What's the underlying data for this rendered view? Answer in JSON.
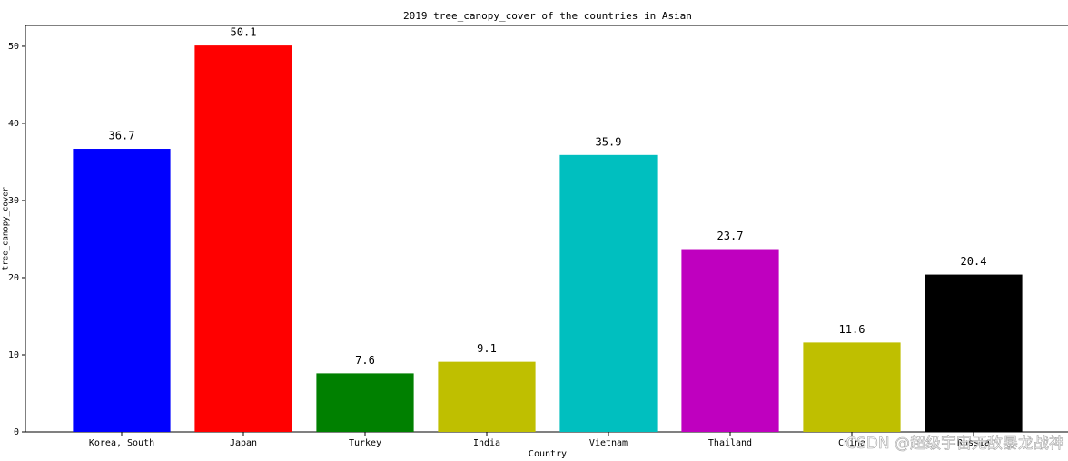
{
  "chart_data": {
    "type": "bar",
    "title": "2019 tree_canopy_cover of the countries in Asian",
    "x_label": "Country",
    "y_label": "tree_canopy_cover",
    "categories": [
      "Korea, South",
      "Japan",
      "Turkey",
      "India",
      "Vietnam",
      "Thailand",
      "China",
      "Russia"
    ],
    "values": [
      36.7,
      50.1,
      7.6,
      9.1,
      35.9,
      23.7,
      11.6,
      20.4
    ],
    "colors": [
      "#0000ff",
      "#ff0000",
      "#008000",
      "#bfbf00",
      "#00bfbf",
      "#bf00bf",
      "#bfbf00",
      "#000000"
    ],
    "ylim": [
      0,
      52.7
    ],
    "yticks": [
      0,
      10,
      20,
      30,
      40,
      50
    ],
    "grid": false,
    "watermark": "CSDN @超级宇宙无敌暴龙战神"
  }
}
